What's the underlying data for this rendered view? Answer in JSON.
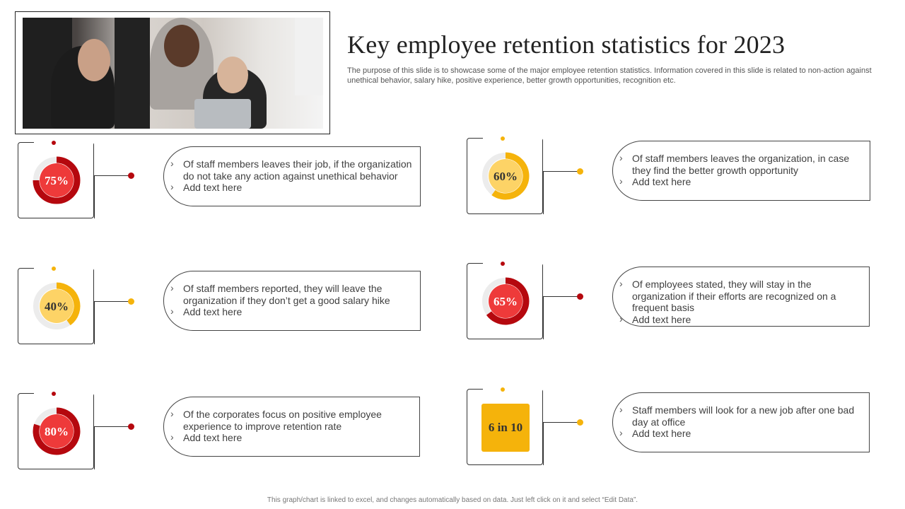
{
  "header": {
    "title": "Key employee retention statistics for 2023",
    "subtitle": "The purpose of this slide is to showcase some of the major employee retention statistics. Information covered in this slide is related to non-action against unethical behavior, salary hike, positive experience, better growth opportunities, recognition etc."
  },
  "footer": {
    "note": "This graph/chart is linked to excel, and changes automatically based on data. Just left click on it and select “Edit Data”."
  },
  "colors": {
    "red_dark": "#b5080e",
    "red_light": "#ee3a3a",
    "yellow_dark": "#f5b30b",
    "yellow_light": "#fdd366"
  },
  "stats": [
    {
      "value": "75%",
      "percent": 75,
      "theme": "red",
      "text": "Of staff members leaves their job, if the organization do not take any action against unethical behavior",
      "add_text": "Add text here"
    },
    {
      "value": "40%",
      "percent": 40,
      "theme": "yellow",
      "text": "Of staff members reported, they will leave the organization if they don’t get a good salary hike",
      "add_text": "Add text here"
    },
    {
      "value": "80%",
      "percent": 80,
      "theme": "red",
      "text": "Of the corporates focus on positive employee experience to improve retention rate",
      "add_text": "Add text here"
    },
    {
      "value": "60%",
      "percent": 60,
      "theme": "yellow",
      "text": "Of staff members leaves the organization, in case they find the better growth opportunity",
      "add_text": "Add text here"
    },
    {
      "value": "65%",
      "percent": 65,
      "theme": "red",
      "text": "Of employees stated, they will stay in the organization if their efforts are recognized on a frequent basis",
      "add_text": "Add text here"
    },
    {
      "value": "6 in 10",
      "percent": 60,
      "theme": "yellow-box",
      "text": "Staff members will look for a new job after one bad day at office",
      "add_text": "Add text here"
    }
  ]
}
